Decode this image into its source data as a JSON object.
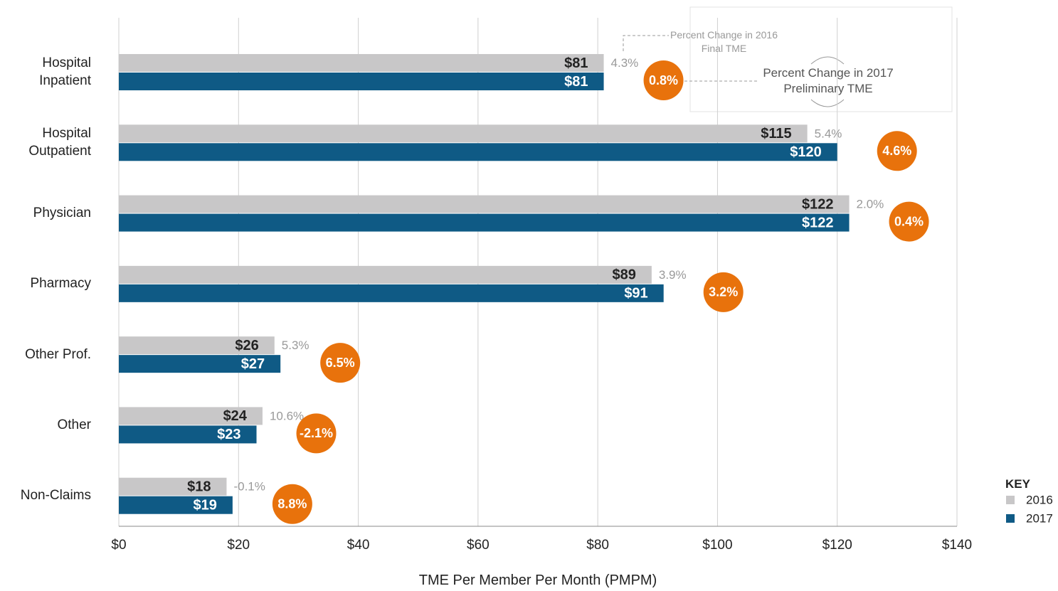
{
  "chart_data": {
    "type": "bar",
    "orientation": "horizontal",
    "categories": [
      "Hospital Inpatient",
      "Hospital Outpatient",
      "Physician",
      "Pharmacy",
      "Other Prof.",
      "Other",
      "Non-Claims"
    ],
    "series": [
      {
        "name": "2016",
        "color": "#c8c7c8",
        "label_color": "#222222",
        "values": [
          81,
          115,
          122,
          89,
          26,
          24,
          18
        ],
        "value_labels": [
          "$81",
          "$115",
          "$122",
          "$89",
          "$26",
          "$24",
          "$18"
        ]
      },
      {
        "name": "2017",
        "color": "#0f5a85",
        "label_color": "#ffffff",
        "values": [
          81,
          120,
          122,
          91,
          27,
          23,
          19
        ],
        "value_labels": [
          "$81",
          "$120",
          "$122",
          "$91",
          "$27",
          "$23",
          "$19"
        ]
      }
    ],
    "pct_change_2016": {
      "name": "Percent Change in 2016 Final TME",
      "color": "#999999",
      "values": [
        4.3,
        5.4,
        2.0,
        3.9,
        5.3,
        10.6,
        -0.1
      ],
      "value_labels": [
        "4.3%",
        "5.4%",
        "2.0%",
        "3.9%",
        "5.3%",
        "10.6%",
        "-0.1%"
      ]
    },
    "pct_change_2017": {
      "name": "Percent Change in 2017 Preliminary TME",
      "color": "#e8720c",
      "values": [
        0.8,
        4.6,
        0.4,
        3.2,
        6.5,
        -2.1,
        8.8
      ],
      "value_labels": [
        "0.8%",
        "4.6%",
        "0.4%",
        "3.2%",
        "6.5%",
        "-2.1%",
        "8.8%"
      ]
    },
    "xlabel": "TME Per Member Per Month (PMPM)",
    "xlim": [
      0,
      140
    ],
    "xticks": [
      {
        "value": 0,
        "label": "$0"
      },
      {
        "value": 20,
        "label": "$20"
      },
      {
        "value": 40,
        "label": "$40"
      },
      {
        "value": 60,
        "label": "$60"
      },
      {
        "value": 80,
        "label": "$80"
      },
      {
        "value": 100,
        "label": "$100"
      },
      {
        "value": 120,
        "label": "$120"
      },
      {
        "value": 140,
        "label": "$140"
      }
    ],
    "grid": true,
    "legend_title": "KEY",
    "legend_position": "lower right"
  }
}
